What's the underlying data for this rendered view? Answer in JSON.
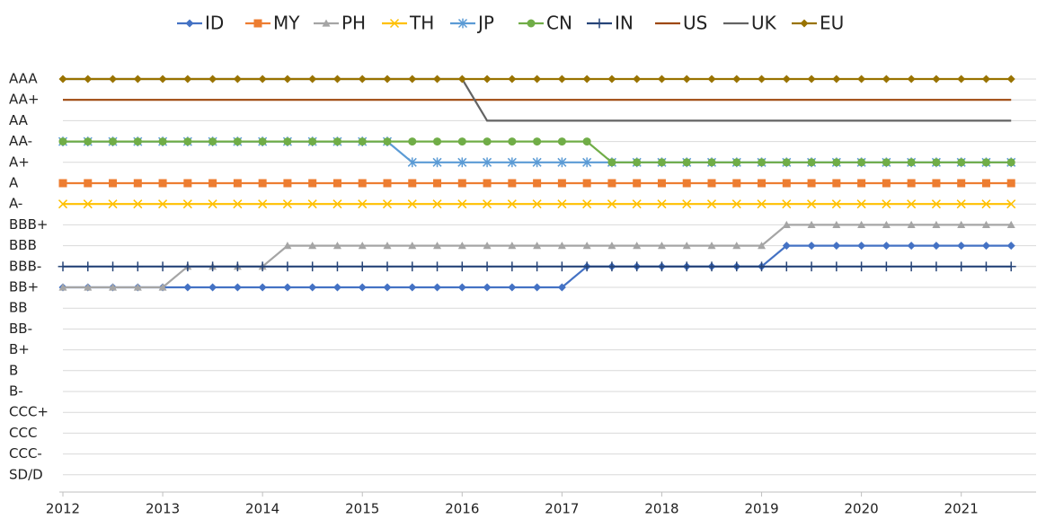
{
  "chart_data": {
    "type": "line",
    "grid": true,
    "x": [
      2012,
      2012.25,
      2012.5,
      2012.75,
      2013,
      2013.25,
      2013.5,
      2013.75,
      2014,
      2014.25,
      2014.5,
      2014.75,
      2015,
      2015.25,
      2015.5,
      2015.75,
      2016,
      2016.25,
      2016.5,
      2016.75,
      2017,
      2017.25,
      2017.5,
      2017.75,
      2018,
      2018.25,
      2018.5,
      2018.75,
      2019,
      2019.25,
      2019.5,
      2019.75,
      2020,
      2020.25,
      2020.5,
      2020.75,
      2021,
      2021.25,
      2021.5
    ],
    "xlim": [
      2012,
      2021.75
    ],
    "xticks": [
      2012,
      2013,
      2014,
      2015,
      2016,
      2017,
      2018,
      2019,
      2020,
      2021
    ],
    "ylim": [
      0,
      20
    ],
    "yticks": [
      {
        "value": 20,
        "label": "AAA"
      },
      {
        "value": 19,
        "label": "AA+"
      },
      {
        "value": 18,
        "label": "AA"
      },
      {
        "value": 17,
        "label": "AA-"
      },
      {
        "value": 16,
        "label": "A+"
      },
      {
        "value": 15,
        "label": "A"
      },
      {
        "value": 14,
        "label": "A-"
      },
      {
        "value": 13,
        "label": "BBB+"
      },
      {
        "value": 12,
        "label": "BBB"
      },
      {
        "value": 11,
        "label": "BBB-"
      },
      {
        "value": 10,
        "label": "BB+"
      },
      {
        "value": 9,
        "label": "BB"
      },
      {
        "value": 8,
        "label": "BB-"
      },
      {
        "value": 7,
        "label": "B+"
      },
      {
        "value": 6,
        "label": "B"
      },
      {
        "value": 5,
        "label": "B-"
      },
      {
        "value": 4,
        "label": "CCC+"
      },
      {
        "value": 3,
        "label": "CCC"
      },
      {
        "value": 2,
        "label": "CCC-"
      },
      {
        "value": 1,
        "label": "SD/D"
      }
    ],
    "series": [
      {
        "name": "ID",
        "color": "#4472c4",
        "marker": "diamond",
        "values": [
          10,
          10,
          10,
          10,
          10,
          10,
          10,
          10,
          10,
          10,
          10,
          10,
          10,
          10,
          10,
          10,
          10,
          10,
          10,
          10,
          10,
          11,
          11,
          11,
          11,
          11,
          11,
          11,
          11,
          12,
          12,
          12,
          12,
          12,
          12,
          12,
          12,
          12,
          12
        ]
      },
      {
        "name": "MY",
        "color": "#ed7d31",
        "marker": "square",
        "values": [
          15,
          15,
          15,
          15,
          15,
          15,
          15,
          15,
          15,
          15,
          15,
          15,
          15,
          15,
          15,
          15,
          15,
          15,
          15,
          15,
          15,
          15,
          15,
          15,
          15,
          15,
          15,
          15,
          15,
          15,
          15,
          15,
          15,
          15,
          15,
          15,
          15,
          15,
          15
        ]
      },
      {
        "name": "PH",
        "color": "#a5a5a5",
        "marker": "triangle",
        "values": [
          10,
          10,
          10,
          10,
          10,
          11,
          11,
          11,
          11,
          12,
          12,
          12,
          12,
          12,
          12,
          12,
          12,
          12,
          12,
          12,
          12,
          12,
          12,
          12,
          12,
          12,
          12,
          12,
          12,
          13,
          13,
          13,
          13,
          13,
          13,
          13,
          13,
          13,
          13
        ]
      },
      {
        "name": "TH",
        "color": "#ffc000",
        "marker": "x",
        "values": [
          14,
          14,
          14,
          14,
          14,
          14,
          14,
          14,
          14,
          14,
          14,
          14,
          14,
          14,
          14,
          14,
          14,
          14,
          14,
          14,
          14,
          14,
          14,
          14,
          14,
          14,
          14,
          14,
          14,
          14,
          14,
          14,
          14,
          14,
          14,
          14,
          14,
          14,
          14
        ]
      },
      {
        "name": "JP",
        "color": "#5b9bd5",
        "marker": "asterisk",
        "values": [
          17,
          17,
          17,
          17,
          17,
          17,
          17,
          17,
          17,
          17,
          17,
          17,
          17,
          17,
          16,
          16,
          16,
          16,
          16,
          16,
          16,
          16,
          16,
          16,
          16,
          16,
          16,
          16,
          16,
          16,
          16,
          16,
          16,
          16,
          16,
          16,
          16,
          16,
          16
        ]
      },
      {
        "name": "CN",
        "color": "#70ad47",
        "marker": "circle",
        "values": [
          17,
          17,
          17,
          17,
          17,
          17,
          17,
          17,
          17,
          17,
          17,
          17,
          17,
          17,
          17,
          17,
          17,
          17,
          17,
          17,
          17,
          17,
          16,
          16,
          16,
          16,
          16,
          16,
          16,
          16,
          16,
          16,
          16,
          16,
          16,
          16,
          16,
          16,
          16
        ]
      },
      {
        "name": "IN",
        "color": "#264478",
        "marker": "plus",
        "values": [
          11,
          11,
          11,
          11,
          11,
          11,
          11,
          11,
          11,
          11,
          11,
          11,
          11,
          11,
          11,
          11,
          11,
          11,
          11,
          11,
          11,
          11,
          11,
          11,
          11,
          11,
          11,
          11,
          11,
          11,
          11,
          11,
          11,
          11,
          11,
          11,
          11,
          11,
          11
        ]
      },
      {
        "name": "US",
        "color": "#9e480e",
        "marker": "none",
        "values": [
          19,
          19,
          19,
          19,
          19,
          19,
          19,
          19,
          19,
          19,
          19,
          19,
          19,
          19,
          19,
          19,
          19,
          19,
          19,
          19,
          19,
          19,
          19,
          19,
          19,
          19,
          19,
          19,
          19,
          19,
          19,
          19,
          19,
          19,
          19,
          19,
          19,
          19,
          19
        ]
      },
      {
        "name": "UK",
        "color": "#636363",
        "marker": "none",
        "values": [
          20,
          20,
          20,
          20,
          20,
          20,
          20,
          20,
          20,
          20,
          20,
          20,
          20,
          20,
          20,
          20,
          20,
          18,
          18,
          18,
          18,
          18,
          18,
          18,
          18,
          18,
          18,
          18,
          18,
          18,
          18,
          18,
          18,
          18,
          18,
          18,
          18,
          18,
          18
        ]
      },
      {
        "name": "EU",
        "color": "#997300",
        "marker": "diamond",
        "values": [
          20,
          20,
          20,
          20,
          20,
          20,
          20,
          20,
          20,
          20,
          20,
          20,
          20,
          20,
          20,
          20,
          20,
          20,
          20,
          20,
          20,
          20,
          20,
          20,
          20,
          20,
          20,
          20,
          20,
          20,
          20,
          20,
          20,
          20,
          20,
          20,
          20,
          20,
          20
        ]
      }
    ]
  }
}
